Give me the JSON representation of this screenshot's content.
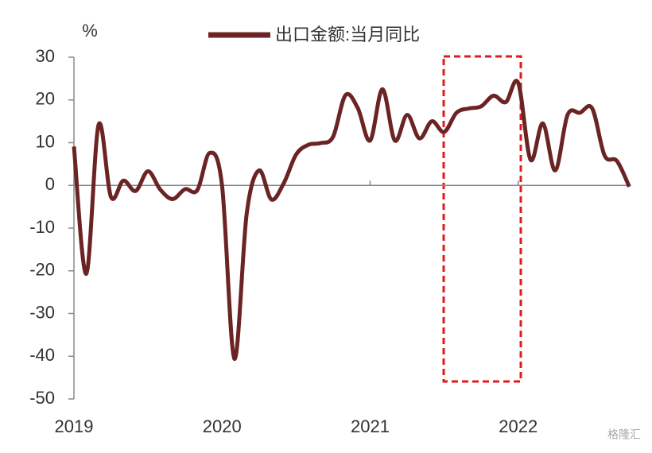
{
  "chart_data": {
    "type": "line",
    "title": "出口金额:当月同比",
    "y_label": "%",
    "watermark": "格隆汇",
    "categories": [
      "2019",
      null,
      null,
      null,
      null,
      null,
      null,
      null,
      null,
      null,
      null,
      null,
      "2020",
      null,
      null,
      null,
      null,
      null,
      null,
      null,
      null,
      null,
      null,
      null,
      "2021",
      null,
      null,
      null,
      null,
      null,
      null,
      null,
      null,
      null,
      null,
      null,
      "2022",
      null,
      null,
      null,
      null,
      null,
      null,
      null,
      null,
      null
    ],
    "series": [
      {
        "name": "出口金额:当月同比",
        "color": "#6b2424",
        "values": [
          9.1,
          -20.7,
          14.2,
          -2.7,
          1.1,
          -1.3,
          3.3,
          -1.0,
          -3.2,
          -0.9,
          -1.1,
          7.6,
          0,
          -40.6,
          -6.6,
          3.5,
          -3.3,
          0.5,
          7.2,
          9.5,
          9.9,
          11.4,
          21.1,
          18.1,
          10.5,
          22.5,
          10.5,
          16.5,
          11,
          15,
          12.5,
          17,
          18,
          18.5,
          21,
          19.5,
          24,
          6,
          14.5,
          3.5,
          16.5,
          17,
          18,
          7,
          5.7,
          -0.3
        ]
      }
    ],
    "ylim": [
      -50,
      30
    ],
    "yticks": [
      -50,
      -40,
      -30,
      -20,
      -10,
      0,
      10,
      20,
      30
    ],
    "grid": false,
    "legend": "top"
  }
}
